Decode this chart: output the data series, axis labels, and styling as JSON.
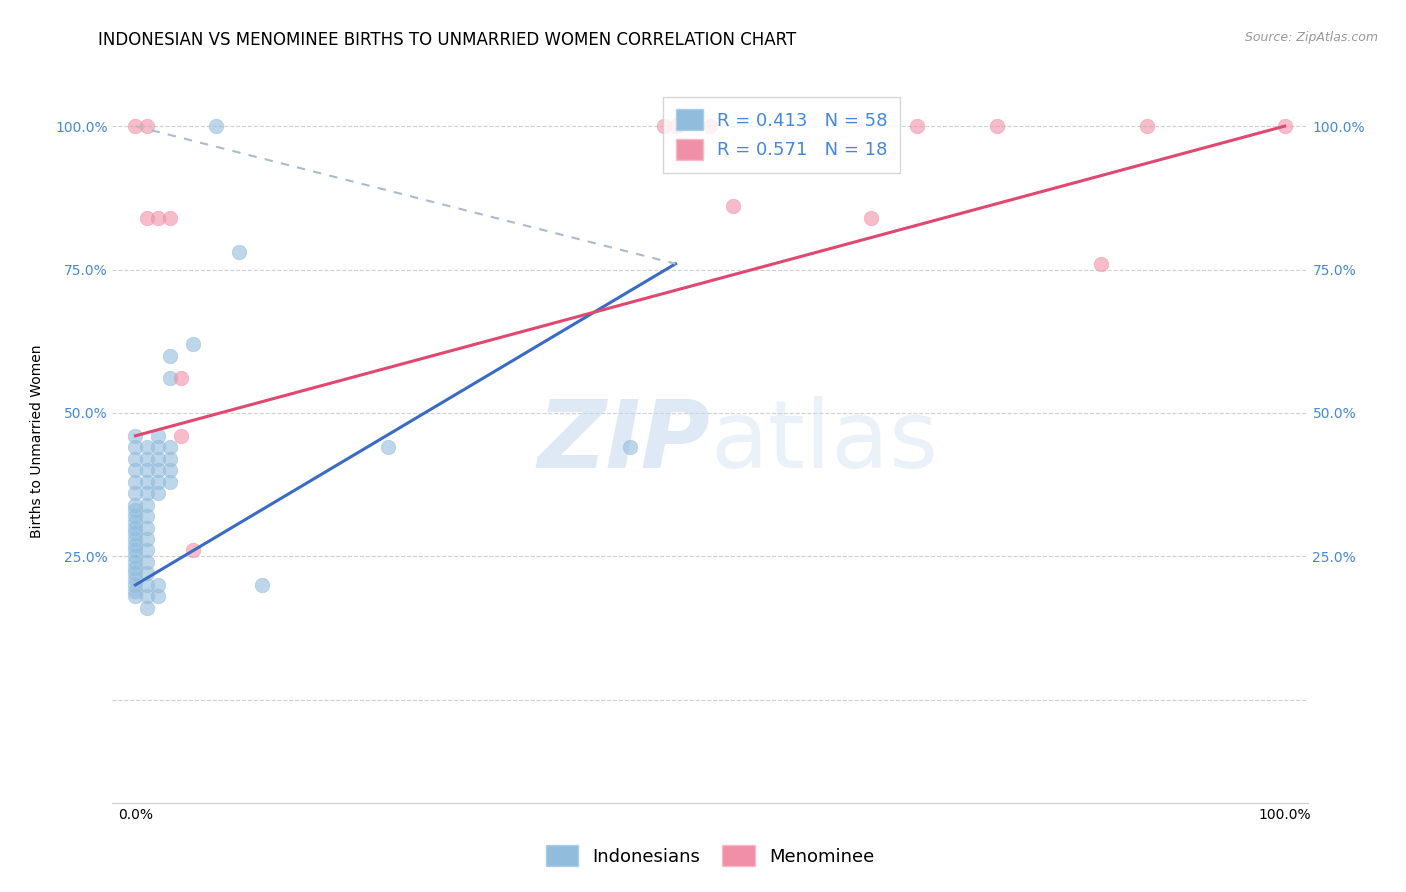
{
  "title": "INDONESIAN VS MENOMINEE BIRTHS TO UNMARRIED WOMEN CORRELATION CHART",
  "source": "Source: ZipAtlas.com",
  "ylabel": "Births to Unmarried Women",
  "xlim": [
    -0.02,
    1.02
  ],
  "ylim": [
    -0.18,
    1.08
  ],
  "watermark_zip": "ZIP",
  "watermark_atlas": "atlas",
  "legend_entries": [
    {
      "label_r": "R = 0.413",
      "label_n": "N = 58",
      "color": "#a8c4e0"
    },
    {
      "label_r": "R = 0.571",
      "label_n": "N = 18",
      "color": "#f4a0b0"
    }
  ],
  "legend_labels": [
    "Indonesians",
    "Menominee"
  ],
  "indonesian_points": [
    [
      0.0,
      0.46
    ],
    [
      0.0,
      0.44
    ],
    [
      0.0,
      0.42
    ],
    [
      0.0,
      0.4
    ],
    [
      0.0,
      0.38
    ],
    [
      0.0,
      0.36
    ],
    [
      0.0,
      0.34
    ],
    [
      0.0,
      0.33
    ],
    [
      0.0,
      0.32
    ],
    [
      0.0,
      0.31
    ],
    [
      0.0,
      0.3
    ],
    [
      0.0,
      0.29
    ],
    [
      0.0,
      0.28
    ],
    [
      0.0,
      0.27
    ],
    [
      0.0,
      0.26
    ],
    [
      0.0,
      0.25
    ],
    [
      0.0,
      0.24
    ],
    [
      0.0,
      0.23
    ],
    [
      0.0,
      0.22
    ],
    [
      0.0,
      0.21
    ],
    [
      0.0,
      0.2
    ],
    [
      0.0,
      0.19
    ],
    [
      0.0,
      0.18
    ],
    [
      0.01,
      0.44
    ],
    [
      0.01,
      0.42
    ],
    [
      0.01,
      0.4
    ],
    [
      0.01,
      0.38
    ],
    [
      0.01,
      0.36
    ],
    [
      0.01,
      0.34
    ],
    [
      0.01,
      0.32
    ],
    [
      0.01,
      0.3
    ],
    [
      0.01,
      0.28
    ],
    [
      0.01,
      0.26
    ],
    [
      0.01,
      0.24
    ],
    [
      0.01,
      0.22
    ],
    [
      0.01,
      0.2
    ],
    [
      0.01,
      0.18
    ],
    [
      0.01,
      0.16
    ],
    [
      0.02,
      0.46
    ],
    [
      0.02,
      0.44
    ],
    [
      0.02,
      0.42
    ],
    [
      0.02,
      0.4
    ],
    [
      0.02,
      0.38
    ],
    [
      0.02,
      0.36
    ],
    [
      0.02,
      0.2
    ],
    [
      0.02,
      0.18
    ],
    [
      0.03,
      0.6
    ],
    [
      0.03,
      0.56
    ],
    [
      0.03,
      0.44
    ],
    [
      0.03,
      0.42
    ],
    [
      0.03,
      0.4
    ],
    [
      0.03,
      0.38
    ],
    [
      0.05,
      0.62
    ],
    [
      0.07,
      1.0
    ],
    [
      0.09,
      0.78
    ],
    [
      0.11,
      0.2
    ],
    [
      0.22,
      0.44
    ],
    [
      0.43,
      0.44
    ]
  ],
  "menominee_points": [
    [
      0.0,
      1.0
    ],
    [
      0.01,
      1.0
    ],
    [
      0.01,
      0.84
    ],
    [
      0.02,
      0.84
    ],
    [
      0.03,
      0.84
    ],
    [
      0.04,
      0.56
    ],
    [
      0.04,
      0.46
    ],
    [
      0.05,
      0.26
    ],
    [
      0.46,
      1.0
    ],
    [
      0.47,
      1.0
    ],
    [
      0.5,
      1.0
    ],
    [
      0.52,
      0.86
    ],
    [
      0.64,
      0.84
    ],
    [
      0.68,
      1.0
    ],
    [
      0.75,
      1.0
    ],
    [
      0.84,
      0.76
    ],
    [
      0.88,
      1.0
    ],
    [
      1.0,
      1.0
    ]
  ],
  "blue_line": {
    "x0": 0.0,
    "y0": 0.2,
    "x1": 0.47,
    "y1": 0.76
  },
  "blue_dashed_line": {
    "x0": 0.0,
    "y0": 1.0,
    "x1": 0.47,
    "y1": 0.76
  },
  "pink_line": {
    "x0": 0.0,
    "y0": 0.46,
    "x1": 1.0,
    "y1": 1.0
  },
  "dot_color_blue": "#91bcdc",
  "dot_color_pink": "#f090a8",
  "dot_edge_blue": "#91bcdc",
  "dot_edge_pink": "#f090a8",
  "line_color_blue": "#3a6bc4",
  "line_color_pink": "#e04870",
  "dashed_color": "#aabbcc",
  "grid_color": "#d0d0d0",
  "background_color": "#ffffff",
  "title_fontsize": 12,
  "axis_label_fontsize": 10,
  "tick_fontsize": 10,
  "legend_fontsize": 13,
  "dot_size": 110,
  "ytick_color": "#4488dd"
}
